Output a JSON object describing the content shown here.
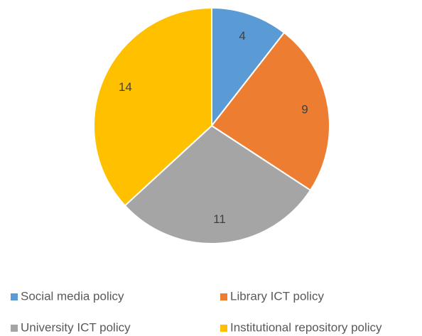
{
  "chart_data": {
    "type": "pie",
    "categories": [
      "Social media policy",
      "Library ICT policy",
      "University ICT policy",
      "Institutional repository policy"
    ],
    "values": [
      4,
      9,
      11,
      14
    ],
    "colors": [
      "#5b9bd5",
      "#ed7d31",
      "#a5a5a5",
      "#ffc000"
    ],
    "legend": "bottom"
  }
}
